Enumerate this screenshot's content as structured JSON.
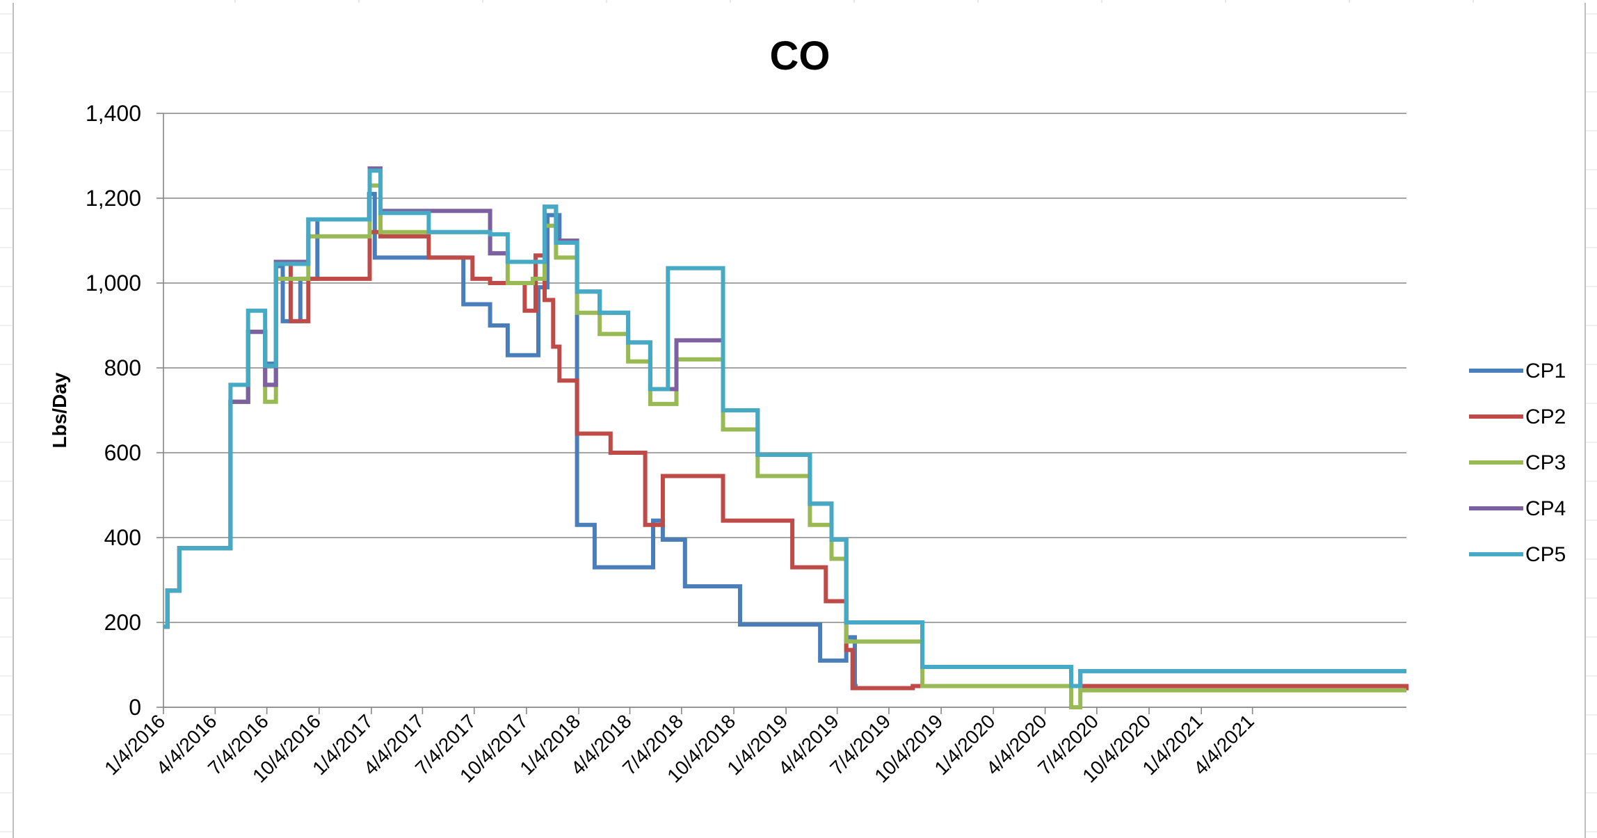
{
  "chart_data": {
    "type": "line",
    "title": "CO",
    "xlabel": "",
    "ylabel": "Lbs/Day",
    "ylim": [
      0,
      1400
    ],
    "yticks": [
      "0",
      "200",
      "400",
      "600",
      "800",
      "1,000",
      "1,200",
      "1,400"
    ],
    "xlim": [
      "1/4/2016",
      "12/31/2021"
    ],
    "xticks": [
      "1/4/2016",
      "4/4/2016",
      "7/4/2016",
      "10/4/2016",
      "1/4/2017",
      "4/4/2017",
      "7/4/2017",
      "10/4/2017",
      "1/4/2018",
      "4/4/2018",
      "7/4/2018",
      "10/4/2018",
      "1/4/2019",
      "4/4/2019",
      "7/4/2019",
      "10/4/2019",
      "1/4/2020",
      "4/4/2020",
      "7/4/2020",
      "10/4/2020",
      "1/4/2021",
      "4/4/2021"
    ],
    "grid": true,
    "legend": "right",
    "step": true,
    "colors": {
      "CP1": "#4a7ebb",
      "CP2": "#be4b48",
      "CP3": "#98b954",
      "CP4": "#7d60a0",
      "CP5": "#46aac5"
    },
    "series": [
      {
        "name": "CP1",
        "x": [
          "2016-01-04",
          "2016-01-11",
          "2016-02-01",
          "2016-05-01",
          "2016-06-01",
          "2016-07-01",
          "2016-07-20",
          "2016-08-01",
          "2016-09-01",
          "2016-10-01",
          "2016-12-31",
          "2017-01-10",
          "2017-01-20",
          "2017-05-01",
          "2017-06-15",
          "2017-08-01",
          "2017-09-01",
          "2017-10-25",
          "2017-11-10",
          "2017-12-01",
          "2018-01-01",
          "2018-02-01",
          "2018-05-01",
          "2018-05-15",
          "2018-06-01",
          "2018-07-10",
          "2018-09-15",
          "2018-10-15",
          "2018-12-15",
          "2019-03-05",
          "2019-04-20",
          "2019-05-05",
          "2019-05-10"
        ],
        "y": [
          190,
          275,
          375,
          720,
          885,
          810,
          1040,
          910,
          1010,
          1150,
          1210,
          1060,
          1060,
          1060,
          950,
          900,
          830,
          990,
          1160,
          1100,
          430,
          330,
          330,
          440,
          395,
          285,
          285,
          195,
          195,
          110,
          165,
          50,
          50
        ]
      },
      {
        "name": "CP2",
        "x": [
          "2016-01-04",
          "2016-01-11",
          "2016-02-01",
          "2016-05-01",
          "2016-06-01",
          "2016-07-01",
          "2016-07-20",
          "2016-08-15",
          "2016-09-15",
          "2017-01-01",
          "2017-01-20",
          "2017-04-15",
          "2017-07-01",
          "2017-08-01",
          "2017-10-01",
          "2017-10-20",
          "2017-11-05",
          "2017-11-20",
          "2017-12-01",
          "2018-01-01",
          "2018-03-01",
          "2018-05-01",
          "2018-06-01",
          "2018-09-15",
          "2019-01-15",
          "2019-03-15",
          "2019-04-20",
          "2019-05-01",
          "2019-08-15",
          "2021-12-31"
        ],
        "y": [
          190,
          275,
          375,
          720,
          885,
          760,
          1050,
          910,
          1010,
          1120,
          1110,
          1060,
          1010,
          1000,
          935,
          1065,
          960,
          850,
          770,
          645,
          600,
          430,
          545,
          440,
          330,
          250,
          135,
          45,
          50,
          40
        ]
      },
      {
        "name": "CP3",
        "x": [
          "2016-01-04",
          "2016-01-11",
          "2016-02-01",
          "2016-05-01",
          "2016-06-01",
          "2016-07-01",
          "2016-07-20",
          "2016-09-15",
          "2017-01-01",
          "2017-01-20",
          "2017-04-15",
          "2017-08-01",
          "2017-09-01",
          "2017-10-15",
          "2017-11-05",
          "2017-11-25",
          "2018-01-01",
          "2018-02-10",
          "2018-04-01",
          "2018-05-10",
          "2018-06-25",
          "2018-09-15",
          "2018-11-15",
          "2019-02-15",
          "2019-03-25",
          "2019-04-20",
          "2019-09-01",
          "2020-05-20",
          "2020-06-05",
          "2021-12-31"
        ],
        "y": [
          190,
          275,
          375,
          720,
          885,
          720,
          1010,
          1110,
          1230,
          1120,
          1120,
          1070,
          1000,
          1010,
          1135,
          1060,
          930,
          880,
          815,
          715,
          820,
          655,
          545,
          430,
          350,
          155,
          50,
          0,
          40,
          40
        ]
      },
      {
        "name": "CP4",
        "x": [
          "2016-01-04",
          "2016-01-11",
          "2016-02-01",
          "2016-05-01",
          "2016-06-01",
          "2016-07-01",
          "2016-07-20",
          "2016-09-15",
          "2017-01-01",
          "2017-01-20",
          "2017-04-15",
          "2017-08-01",
          "2017-09-01",
          "2017-10-15",
          "2017-11-05",
          "2017-11-25",
          "2018-01-01",
          "2018-02-10",
          "2018-04-01",
          "2018-05-10",
          "2018-06-25",
          "2018-09-15",
          "2018-11-15",
          "2019-02-15",
          "2019-03-25",
          "2019-04-20",
          "2019-09-01",
          "2020-05-20",
          "2020-06-05",
          "2021-12-31"
        ],
        "y": [
          190,
          275,
          375,
          720,
          885,
          760,
          1050,
          1150,
          1270,
          1170,
          1170,
          1070,
          1050,
          1050,
          1180,
          1100,
          980,
          930,
          860,
          750,
          865,
          700,
          595,
          480,
          395,
          200,
          95,
          50,
          85,
          85
        ]
      },
      {
        "name": "CP5",
        "x": [
          "2016-01-04",
          "2016-01-11",
          "2016-02-01",
          "2016-05-01",
          "2016-06-01",
          "2016-07-01",
          "2016-07-20",
          "2016-09-15",
          "2017-01-01",
          "2017-01-20",
          "2017-04-15",
          "2017-08-01",
          "2017-09-01",
          "2017-10-15",
          "2017-11-05",
          "2017-11-25",
          "2018-01-01",
          "2018-02-10",
          "2018-04-01",
          "2018-05-10",
          "2018-06-10",
          "2018-09-15",
          "2018-11-15",
          "2019-02-15",
          "2019-03-25",
          "2019-04-20",
          "2019-09-01",
          "2020-05-20",
          "2020-06-05",
          "2021-12-31"
        ],
        "y": [
          190,
          275,
          375,
          760,
          935,
          805,
          1045,
          1150,
          1265,
          1165,
          1120,
          1115,
          1050,
          1050,
          1180,
          1095,
          980,
          930,
          860,
          750,
          1035,
          700,
          595,
          480,
          395,
          200,
          95,
          50,
          85,
          85
        ]
      }
    ]
  }
}
